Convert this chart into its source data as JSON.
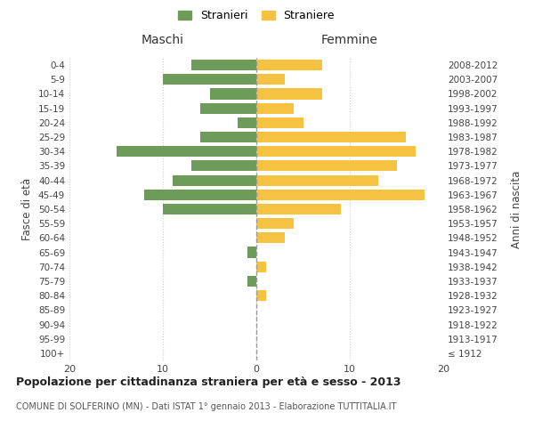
{
  "age_groups": [
    "100+",
    "95-99",
    "90-94",
    "85-89",
    "80-84",
    "75-79",
    "70-74",
    "65-69",
    "60-64",
    "55-59",
    "50-54",
    "45-49",
    "40-44",
    "35-39",
    "30-34",
    "25-29",
    "20-24",
    "15-19",
    "10-14",
    "5-9",
    "0-4"
  ],
  "birth_years": [
    "≤ 1912",
    "1913-1917",
    "1918-1922",
    "1923-1927",
    "1928-1932",
    "1933-1937",
    "1938-1942",
    "1943-1947",
    "1948-1952",
    "1953-1957",
    "1958-1962",
    "1963-1967",
    "1968-1972",
    "1973-1977",
    "1978-1982",
    "1983-1987",
    "1988-1992",
    "1993-1997",
    "1998-2002",
    "2003-2007",
    "2008-2012"
  ],
  "maschi": [
    0,
    0,
    0,
    0,
    0,
    1,
    0,
    1,
    0,
    0,
    10,
    12,
    9,
    7,
    15,
    6,
    2,
    6,
    5,
    10,
    7
  ],
  "femmine": [
    0,
    0,
    0,
    0,
    1,
    0,
    1,
    0,
    3,
    4,
    9,
    18,
    13,
    15,
    17,
    16,
    5,
    4,
    7,
    3,
    7
  ],
  "maschi_color": "#6d9b5a",
  "femmine_color": "#f5c242",
  "title_main": "Popolazione per cittadinanza straniera per età e sesso - 2013",
  "title_sub": "COMUNE DI SOLFERINO (MN) - Dati ISTAT 1° gennaio 2013 - Elaborazione TUTTITALIA.IT",
  "legend_maschi": "Stranieri",
  "legend_femmine": "Straniere",
  "xlabel_left": "Maschi",
  "xlabel_right": "Femmine",
  "ylabel_left": "Fasce di età",
  "ylabel_right": "Anni di nascita",
  "xlim": 20,
  "background_color": "#ffffff",
  "grid_color": "#cccccc"
}
